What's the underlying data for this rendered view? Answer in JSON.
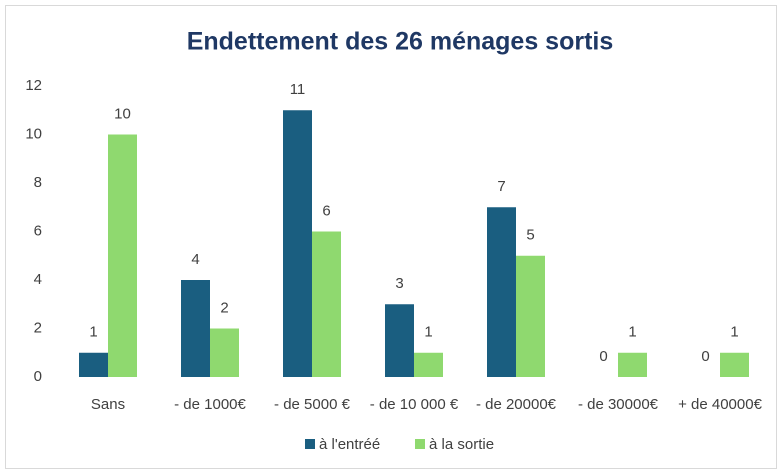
{
  "chart_data": {
    "type": "bar",
    "title": "Endettement des 26 ménages sortis",
    "categories": [
      "Sans",
      "- de 1000€",
      "- de 5000 €",
      "- de 10 000 €",
      "- de 20000€",
      "- de 30000€",
      "+ de 40000€"
    ],
    "series": [
      {
        "name": "à l'entréé",
        "color": "#1a5e80",
        "values": [
          1,
          4,
          11,
          3,
          7,
          0,
          0
        ]
      },
      {
        "name": "à la sortie",
        "color": "#8fd96f",
        "values": [
          10,
          2,
          6,
          1,
          5,
          1,
          1
        ]
      }
    ],
    "ylim": [
      0,
      12
    ],
    "yticks": [
      0,
      2,
      4,
      6,
      8,
      10,
      12
    ],
    "grid": false,
    "legend": "bottom"
  }
}
